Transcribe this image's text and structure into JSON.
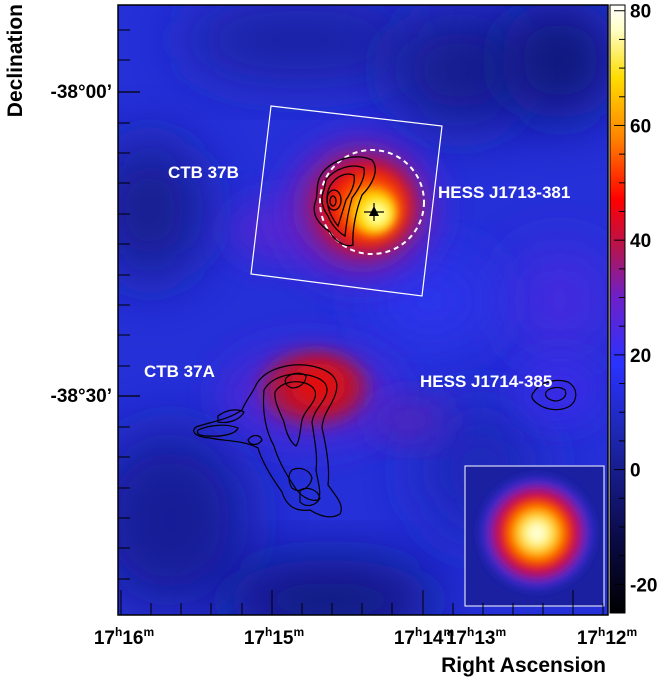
{
  "axes": {
    "xlabel": "Right Ascension",
    "ylabel": "Declination"
  },
  "ra_ticks": [
    {
      "h": "17",
      "m": "16"
    },
    {
      "h": "17",
      "m": "15"
    },
    {
      "h": "17",
      "m": "14"
    },
    {
      "h": "17",
      "m": "13"
    },
    {
      "h": "17",
      "m": "12"
    }
  ],
  "dec_ticks": [
    "-38°00’",
    "-38°30’"
  ],
  "colorbar": {
    "ticks": [
      "80",
      "60",
      "40",
      "20",
      "0",
      "-20"
    ],
    "range": [
      -25,
      81
    ]
  },
  "annotations": {
    "ctb37b": "CTB 37B",
    "hess1713": "HESS J1713-381",
    "ctb37a": "CTB 37A",
    "hess1714": "HESS J1714-385"
  },
  "colors": {
    "frame": "#000000",
    "overlay_lines": "#ffffff",
    "contours": "#000000",
    "colormap": [
      "#000000",
      "#0a0a46",
      "#1e28b4",
      "#2a32ff",
      "#6e20c8",
      "#b41450",
      "#ff0000",
      "#ff8200",
      "#ffdc00",
      "#ffffc8",
      "#ffffff"
    ]
  }
}
